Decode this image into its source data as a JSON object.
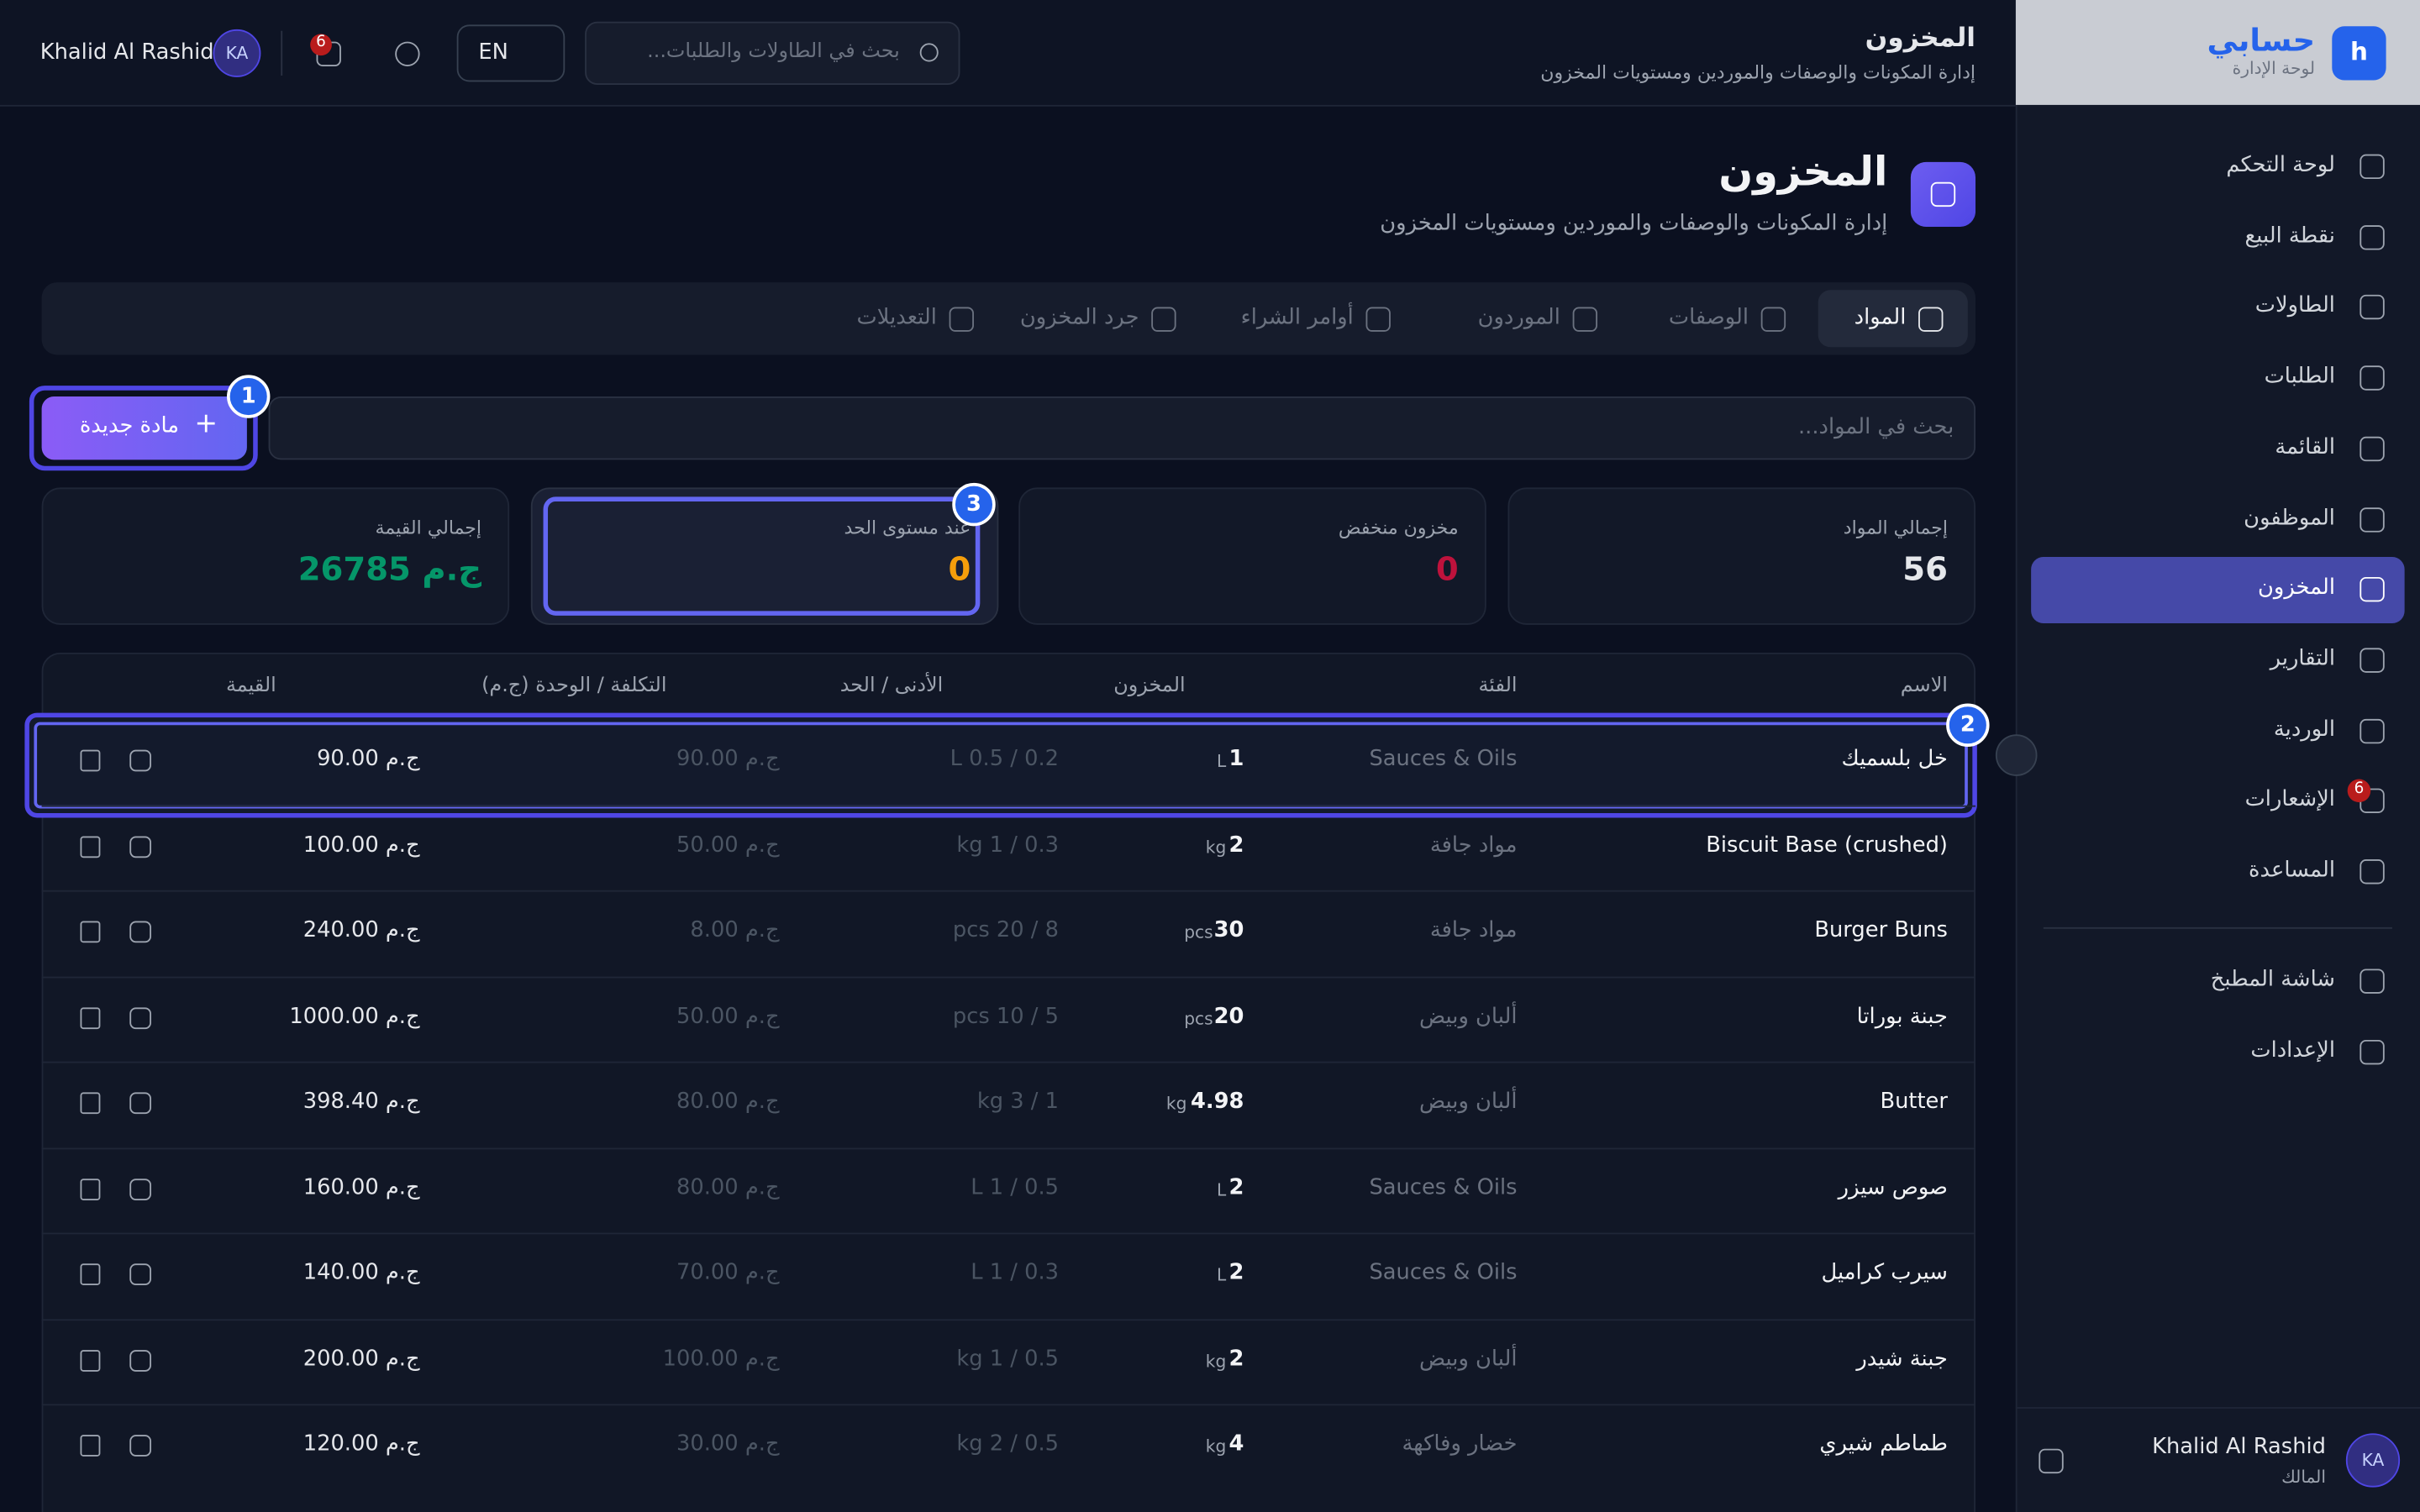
{
  "sidebar": {
    "logo": "h",
    "brand": "حسابي",
    "brand_sub": "لوحة الإدارة",
    "nav": [
      "لوحة التحكم",
      "نقطة البيع",
      "الطاولات",
      "الطلبات",
      "القائمة",
      "الموظفون",
      "المخزون",
      "التقارير",
      "الوردية",
      "الإشعارات",
      "المساعدة"
    ],
    "active": 6,
    "notif_badge": "6",
    "nav2": [
      "شاشة المطبخ",
      "الإعدادات"
    ],
    "user": {
      "initials": "KA",
      "name": "Khalid Al Rashid",
      "role": "المالك"
    }
  },
  "topbar": {
    "title": "المخزون",
    "subtitle": "إدارة المكونات والوصفات والموردين ومستويات المخزون",
    "search_placeholder": "بحث في الطاولات والطلبات...",
    "lang": "EN",
    "notif_count": "6",
    "user_name": "Khalid Al Rashid",
    "initials": "KA"
  },
  "page": {
    "title": "المخزون",
    "subtitle": "إدارة المكونات والوصفات والموردين ومستويات المخزون"
  },
  "tabs": [
    "المواد",
    "الوصفات",
    "الموردون",
    "أوامر الشراء",
    "جرد المخزون",
    "التعديلات"
  ],
  "toolbar": {
    "add_button": "مادة جديدة",
    "search_placeholder": "بحث في المواد..."
  },
  "stats": [
    {
      "label": "إجمالي المواد",
      "value": 56
    },
    {
      "label": "مخزون منخفض",
      "value": 0
    },
    {
      "label": "عند مستوى الحد",
      "value": 0
    },
    {
      "label": "إجمالي القيمة",
      "value": "ج.م 26785"
    }
  ],
  "table": {
    "headers": [
      "الاسم",
      "الفئة",
      "المخزون",
      "الأدنى / الحد",
      "التكلفة / الوحدة (ج.م)",
      "القيمة"
    ],
    "rows": [
      [
        "خل بلسميك",
        "Sauces & Oils",
        1,
        "L",
        "L 0.5 / 0.2",
        "ج.م 90.00",
        "ج.م 90.00"
      ],
      [
        "Biscuit Base (crushed)",
        "مواد جافة",
        2,
        "kg",
        "kg 1 / 0.3",
        "ج.م 50.00",
        "ج.م 100.00"
      ],
      [
        "Burger Buns",
        "مواد جافة",
        30,
        "pcs",
        "pcs 20 / 8",
        "ج.م 8.00",
        "ج.م 240.00"
      ],
      [
        "جبنة بوراتا",
        "ألبان وبيض",
        20,
        "pcs",
        "pcs 10 / 5",
        "ج.م 50.00",
        "ج.م 1000.00"
      ],
      [
        "Butter",
        "ألبان وبيض",
        4.98,
        "kg",
        "kg 3 / 1",
        "ج.م 80.00",
        "ج.م 398.40"
      ],
      [
        "صوص سيزر",
        "Sauces & Oils",
        2,
        "L",
        "L 1 / 0.5",
        "ج.م 80.00",
        "ج.م 160.00"
      ],
      [
        "سيرب كراميل",
        "Sauces & Oils",
        2,
        "L",
        "L 1 / 0.3",
        "ج.م 70.00",
        "ج.م 140.00"
      ],
      [
        "جبنة شيدر",
        "ألبان وبيض",
        2,
        "kg",
        "kg 1 / 0.5",
        "ج.م 100.00",
        "ج.م 200.00"
      ],
      [
        "طماطم شيري",
        "خضار وفاكهة",
        4,
        "kg",
        "kg 2 / 0.5",
        "ج.م 30.00",
        "ج.م 120.00"
      ]
    ]
  },
  "callouts": [
    "1",
    "2",
    "3"
  ]
}
